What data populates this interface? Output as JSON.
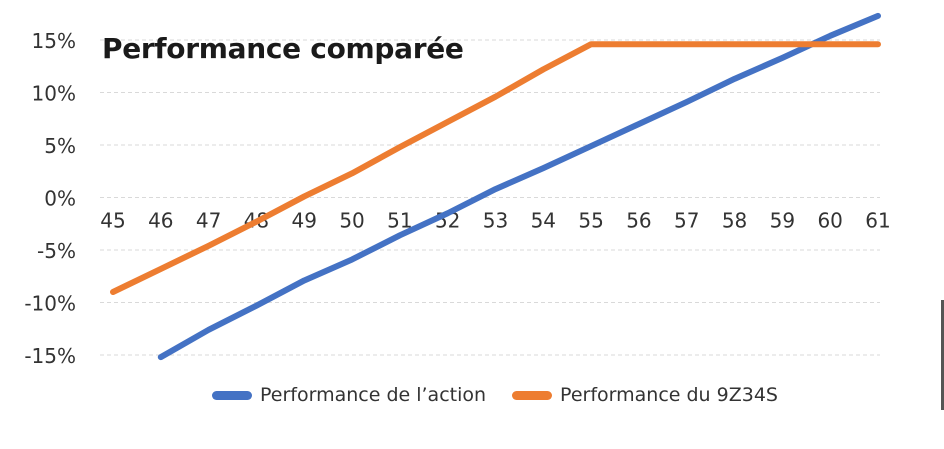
{
  "chart_data": {
    "type": "line",
    "title": "Performance comparée",
    "x": [
      45,
      46,
      47,
      48,
      49,
      50,
      51,
      52,
      53,
      54,
      55,
      56,
      57,
      58,
      59,
      60,
      61
    ],
    "x_tick_labels": [
      "45",
      "46",
      "47",
      "48",
      "49",
      "50",
      "51",
      "52",
      "53",
      "54",
      "55",
      "56",
      "57",
      "58",
      "59",
      "60",
      "61"
    ],
    "y_tick_labels": [
      "15%",
      "10%",
      "5%",
      "0%",
      "-5%",
      "-10%",
      "-15%"
    ],
    "y_ticks": [
      15,
      10,
      5,
      0,
      -5,
      -10,
      -15
    ],
    "ylim": [
      -15,
      15
    ],
    "xlim": [
      45,
      61
    ],
    "grid": true,
    "legend_position": "bottom",
    "series": [
      {
        "name": "Performance de l’action",
        "color": "#4472C4",
        "x": [
          46,
          47,
          48,
          49,
          50,
          51,
          52,
          53,
          54,
          55,
          56,
          57,
          58,
          59,
          60,
          61
        ],
        "values": [
          -15.2,
          -12.6,
          -10.3,
          -7.9,
          -5.9,
          -3.6,
          -1.5,
          0.8,
          2.8,
          4.9,
          7.0,
          9.1,
          11.3,
          13.3,
          15.4,
          17.3
        ]
      },
      {
        "name": "Performance du 9Z34S",
        "color": "#ED7D31",
        "x": [
          45,
          46,
          47,
          48,
          49,
          50,
          51,
          52,
          53,
          54,
          55,
          56,
          57,
          58,
          59,
          60,
          61
        ],
        "values": [
          -9.0,
          -6.8,
          -4.6,
          -2.3,
          0.1,
          2.3,
          4.8,
          7.2,
          9.6,
          12.2,
          14.6,
          14.6,
          14.6,
          14.6,
          14.6,
          14.6,
          14.6
        ]
      }
    ]
  }
}
